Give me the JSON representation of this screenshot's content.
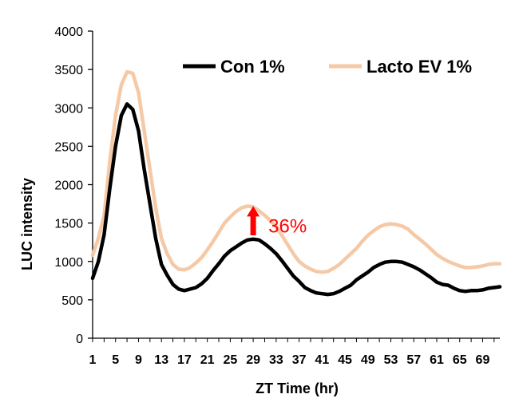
{
  "chart_data": {
    "type": "line",
    "xlabel": "ZT Time (hr)",
    "ylabel": "LUC intensity",
    "ylim": [
      0,
      4000
    ],
    "yticks": [
      0,
      500,
      1000,
      1500,
      2000,
      2500,
      3000,
      3500,
      4000
    ],
    "xlim": [
      1,
      72
    ],
    "xticks": [
      1,
      5,
      9,
      13,
      17,
      21,
      25,
      29,
      33,
      37,
      41,
      45,
      49,
      53,
      57,
      61,
      65,
      69
    ],
    "grid": false,
    "legend_position": "top-right",
    "series": [
      {
        "name": "Con 1%",
        "color": "#000000",
        "x": [
          1,
          2,
          3,
          4,
          5,
          6,
          7,
          8,
          9,
          10,
          11,
          12,
          13,
          14,
          15,
          16,
          17,
          18,
          19,
          20,
          21,
          22,
          23,
          24,
          25,
          26,
          27,
          28,
          29,
          30,
          31,
          32,
          33,
          34,
          35,
          36,
          37,
          38,
          39,
          40,
          41,
          42,
          43,
          44,
          45,
          46,
          47,
          48,
          49,
          50,
          51,
          52,
          53,
          54,
          55,
          56,
          57,
          58,
          59,
          60,
          61,
          62,
          63,
          64,
          65,
          66,
          67,
          68,
          69,
          70,
          71,
          72
        ],
        "y": [
          780,
          1000,
          1350,
          1950,
          2500,
          2900,
          3050,
          2980,
          2700,
          2200,
          1750,
          1300,
          960,
          820,
          700,
          640,
          620,
          640,
          660,
          710,
          780,
          880,
          970,
          1070,
          1140,
          1190,
          1240,
          1280,
          1290,
          1280,
          1230,
          1170,
          1100,
          1010,
          910,
          810,
          740,
          660,
          620,
          590,
          580,
          570,
          580,
          610,
          650,
          690,
          760,
          810,
          860,
          920,
          960,
          990,
          1000,
          1000,
          990,
          960,
          930,
          890,
          840,
          790,
          730,
          700,
          690,
          650,
          620,
          610,
          620,
          620,
          630,
          650,
          660,
          670
        ]
      },
      {
        "name": "Lacto EV 1%",
        "color": "#f5c9a6",
        "x": [
          1,
          2,
          3,
          4,
          5,
          6,
          7,
          8,
          9,
          10,
          11,
          12,
          13,
          14,
          15,
          16,
          17,
          18,
          19,
          20,
          21,
          22,
          23,
          24,
          25,
          26,
          27,
          28,
          29,
          30,
          31,
          32,
          33,
          34,
          35,
          36,
          37,
          38,
          39,
          40,
          41,
          42,
          43,
          44,
          45,
          46,
          47,
          48,
          49,
          50,
          51,
          52,
          53,
          54,
          55,
          56,
          57,
          58,
          59,
          60,
          61,
          62,
          63,
          64,
          65,
          66,
          67,
          68,
          69,
          70,
          71,
          72
        ],
        "y": [
          1080,
          1300,
          1600,
          2300,
          2900,
          3300,
          3470,
          3450,
          3200,
          2700,
          2200,
          1700,
          1300,
          1100,
          960,
          900,
          890,
          920,
          980,
          1050,
          1150,
          1260,
          1380,
          1500,
          1580,
          1650,
          1700,
          1720,
          1710,
          1660,
          1600,
          1530,
          1450,
          1340,
          1220,
          1100,
          1000,
          940,
          900,
          870,
          860,
          870,
          910,
          960,
          1030,
          1100,
          1170,
          1260,
          1340,
          1400,
          1450,
          1480,
          1490,
          1480,
          1460,
          1420,
          1350,
          1290,
          1230,
          1160,
          1090,
          1040,
          1000,
          970,
          940,
          920,
          920,
          930,
          940,
          960,
          970,
          970
        ]
      }
    ],
    "annotation": {
      "text": "36%",
      "x": 29,
      "y_from": 1340,
      "y_to": 1720,
      "color": "#ff0000"
    }
  }
}
